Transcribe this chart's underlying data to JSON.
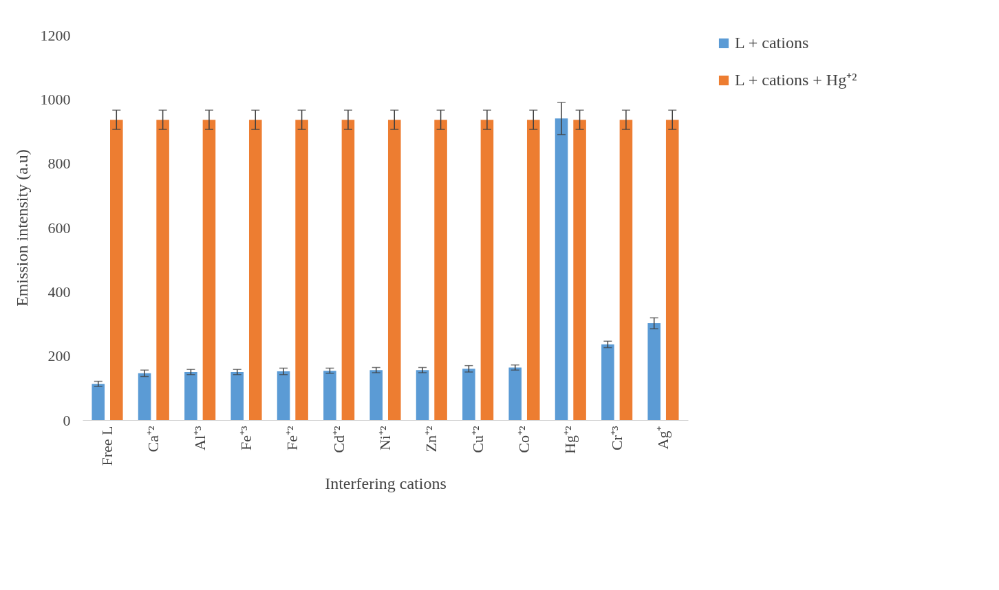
{
  "chart_data": {
    "type": "bar",
    "xlabel": "Interfering cations",
    "ylabel": "Emission intensity (a.u)",
    "categories": [
      "Free L",
      "Ca⁺²",
      "Al⁺³",
      "Fe⁺³",
      "Fe⁺²",
      "Cd⁺²",
      "Ni⁺²",
      "Zn⁺²",
      "Cu⁺²",
      "Co⁺²",
      "Hg⁺²",
      "Cr⁺³",
      "Ag⁺"
    ],
    "series": [
      {
        "name": "L + cations",
        "color": "#5b9bd5",
        "values": [
          113,
          146,
          150,
          150,
          152,
          154,
          156,
          156,
          160,
          164,
          940,
          236,
          302
        ],
        "errors": [
          8,
          10,
          8,
          8,
          10,
          8,
          8,
          8,
          10,
          8,
          50,
          10,
          17
        ]
      },
      {
        "name": "L + cations + Hg⁺²",
        "color": "#ed7d31",
        "values": [
          936,
          936,
          936,
          936,
          936,
          936,
          936,
          936,
          936,
          936,
          936,
          936,
          936
        ],
        "errors": [
          30,
          30,
          30,
          30,
          30,
          30,
          30,
          30,
          30,
          30,
          30,
          30,
          30
        ]
      }
    ],
    "ylim": [
      0,
      1200
    ],
    "yticks": [
      0,
      200,
      400,
      600,
      800,
      1000,
      1200
    ],
    "grid": false,
    "legend": "right"
  }
}
